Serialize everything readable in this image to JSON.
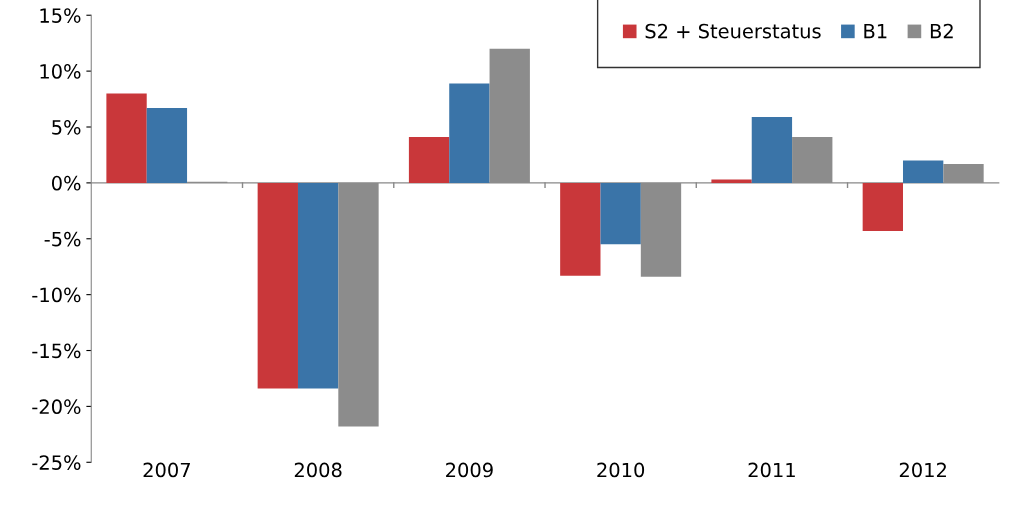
{
  "chart_data": {
    "type": "bar",
    "categories": [
      "2007",
      "2008",
      "2009",
      "2010",
      "2011",
      "2012"
    ],
    "series": [
      {
        "name": "S2 + Steuerstatus",
        "color": "#c9373a",
        "values": [
          8.0,
          -18.4,
          4.1,
          -8.3,
          0.3,
          -4.3
        ]
      },
      {
        "name": "B1",
        "color": "#3a74a8",
        "values": [
          6.7,
          -18.4,
          8.9,
          -5.5,
          5.9,
          2.0
        ]
      },
      {
        "name": "B2",
        "color": "#8c8c8c",
        "values": [
          0.1,
          -21.8,
          12.0,
          -8.4,
          4.1,
          1.7
        ]
      }
    ],
    "ylim": [
      -25,
      15
    ],
    "yticks": [
      {
        "value": -25,
        "label": "-25%"
      },
      {
        "value": -20,
        "label": "-20%"
      },
      {
        "value": -15,
        "label": "-15%"
      },
      {
        "value": -10,
        "label": "-10%"
      },
      {
        "value": -5,
        "label": "-5%"
      },
      {
        "value": 0,
        "label": "0%"
      },
      {
        "value": 5,
        "label": "5%"
      },
      {
        "value": 10,
        "label": "10%"
      },
      {
        "value": 15,
        "label": "15%"
      }
    ],
    "legend": "top right"
  }
}
